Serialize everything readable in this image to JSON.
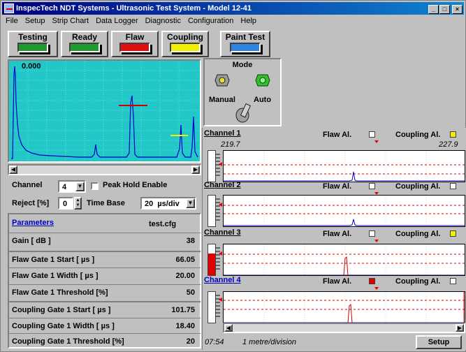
{
  "window": {
    "title": "InspecTech NDT Systems - Ultrasonic Test System - Model 12-41",
    "min_label": "_",
    "max_label": "□",
    "close_label": "×"
  },
  "menu": [
    "File",
    "Setup",
    "Strip Chart",
    "Data Logger",
    "Diagnostic",
    "Configuration",
    "Help"
  ],
  "toolbar": [
    {
      "label": "Testing",
      "color": "#1e9a2e"
    },
    {
      "label": "Ready",
      "color": "#1e9a2e"
    },
    {
      "label": "Flaw",
      "color": "#e01010"
    },
    {
      "label": "Coupling",
      "color": "#f0f000"
    },
    {
      "label": "Paint Test",
      "color": "#2f86e0"
    }
  ],
  "scope": {
    "readout": "0.000",
    "bg": "#22c8c8",
    "flaw_gate_color": "#d00000",
    "coupling_gate_color": "#f0f000"
  },
  "mode": {
    "title": "Mode",
    "manual_label": "Manual",
    "auto_label": "Auto"
  },
  "controls": {
    "channel_label": "Channel",
    "channel_value": "4",
    "peak_hold_label": "Peak Hold Enable",
    "reject_label": "Reject [%]",
    "reject_value": "0",
    "timebase_label": "Time Base",
    "timebase_value": "20  µs/div"
  },
  "parameters": {
    "header": "Parameters",
    "file": "test.cfg",
    "rows": [
      {
        "name": "Gain [ dB ]",
        "value": "38"
      },
      {
        "name": "Flaw Gate 1 Start [ µs ]",
        "value": "66.05"
      },
      {
        "name": "Flaw Gate 1 Width [ µs ]",
        "value": "20.00"
      },
      {
        "name": "Flaw Gate 1 Threshold [%]",
        "value": "50"
      },
      {
        "name": "Coupling Gate 1 Start [ µs ]",
        "value": "101.75"
      },
      {
        "name": "Coupling Gate 1 Width [ µs ]",
        "value": "18.40"
      },
      {
        "name": "Coupling Gate 1 Threshold [%]",
        "value": "20"
      }
    ]
  },
  "channels": [
    {
      "title": "Channel 1",
      "flaw_label": "Flaw Al.",
      "coupling_label": "Coupling Al.",
      "flaw_on": false,
      "coupling_on": true,
      "start": "219.7",
      "end": "227.9",
      "level": 0.0,
      "spike_color": "#0000c0"
    },
    {
      "title": "Channel 2",
      "flaw_label": "Flaw Al.",
      "coupling_label": "Coupling Al.",
      "flaw_on": false,
      "coupling_on": false,
      "level": 0.0,
      "spike_color": "#0000c0"
    },
    {
      "title": "Channel 3",
      "flaw_label": "Flaw Al.",
      "coupling_label": "Coupling Al.",
      "flaw_on": false,
      "coupling_on": true,
      "level": 0.7,
      "spike_color": "#d00000"
    },
    {
      "title": "Channel 4",
      "flaw_label": "Flaw Al.",
      "coupling_label": "Coupling Al.",
      "flaw_on": true,
      "coupling_on": false,
      "level": 0.0,
      "spike_color": "#d00000"
    }
  ],
  "colors": {
    "alarm_on_yellow": "#f0f000",
    "alarm_on_red": "#e00000",
    "channel4_title": "#0000c0",
    "threshold_line": "#e00000"
  },
  "footer": {
    "time": "07:54",
    "scale": "1 metre/division",
    "setup_label": "Setup"
  }
}
